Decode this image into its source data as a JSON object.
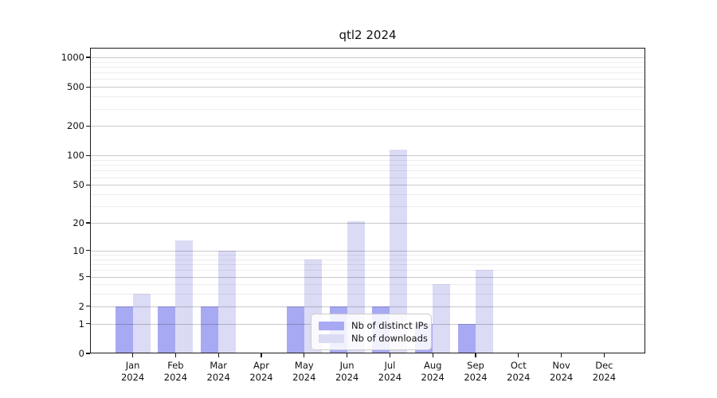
{
  "chart_data": {
    "type": "bar",
    "title": "qtl2 2024",
    "x": {
      "categories": [
        "Jan",
        "Feb",
        "Mar",
        "Apr",
        "May",
        "Jun",
        "Jul",
        "Aug",
        "Sep",
        "Oct",
        "Nov",
        "Dec"
      ],
      "year_label": "2024"
    },
    "series": [
      {
        "name": "Nb of distinct IPs",
        "color": "#a8a9f3",
        "values": [
          2,
          2,
          2,
          0,
          2,
          2,
          2,
          1,
          1,
          0,
          0,
          0
        ]
      },
      {
        "name": "Nb of downloads",
        "color": "#dbdbf6",
        "values": [
          3,
          13,
          10,
          0,
          8,
          21,
          114,
          4,
          6,
          0,
          0,
          0
        ]
      }
    ],
    "yaxis": {
      "scale": "log1p",
      "range": [
        0,
        1000
      ],
      "major_ticks": [
        0,
        1,
        2,
        5,
        10,
        20,
        50,
        100,
        200,
        500,
        1000
      ],
      "minor_gridlines": [
        3,
        4,
        6,
        7,
        8,
        9,
        30,
        40,
        60,
        70,
        80,
        90,
        300,
        400,
        600,
        700,
        800,
        900
      ]
    },
    "legend": {
      "position": "lower center-right"
    },
    "grid": true
  }
}
